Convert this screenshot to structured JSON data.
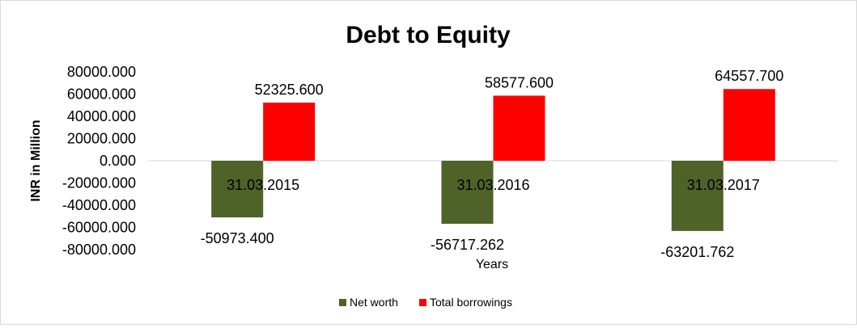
{
  "chart_data": {
    "type": "bar",
    "title": "Debt to Equity",
    "xlabel": "Years",
    "ylabel": "INR in Million",
    "categories": [
      "31.03.2015",
      "31.03.2016",
      "31.03.2017"
    ],
    "series": [
      {
        "name": "Net worth",
        "color": "#4f6228",
        "values": [
          -50973.4,
          -56717.262,
          -63201.762
        ],
        "labels": [
          "-50973.400",
          "-56717.262",
          "-63201.762"
        ]
      },
      {
        "name": "Total borrowings",
        "color": "#ff0000",
        "values": [
          52325.6,
          58577.6,
          64557.7
        ],
        "labels": [
          "52325.600",
          "58577.600",
          "64557.700"
        ]
      }
    ],
    "ylim": [
      -80000,
      80000
    ],
    "yticks": [
      80000,
      60000,
      40000,
      20000,
      0,
      -20000,
      -40000,
      -60000,
      -80000
    ],
    "ytick_labels": [
      "80000.000",
      "60000.000",
      "40000.000",
      "20000.000",
      "0.000",
      "-20000.000",
      "-40000.000",
      "-60000.000",
      "-80000.000"
    ],
    "grid": false,
    "legend": "bottom"
  }
}
